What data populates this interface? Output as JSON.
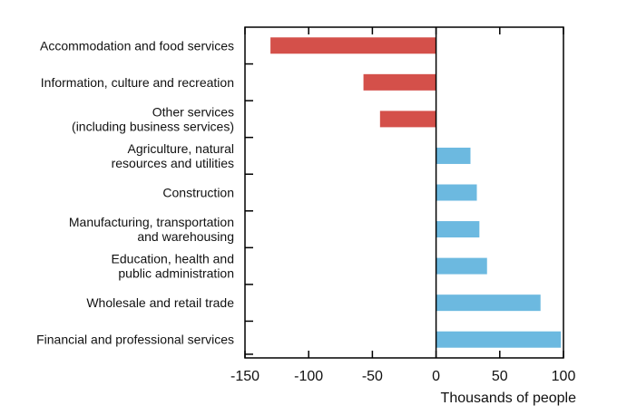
{
  "chart_data": {
    "type": "bar",
    "orientation": "horizontal",
    "xlabel": "Thousands of people",
    "xlim": [
      -150,
      100
    ],
    "xticks": [
      -150,
      -100,
      -50,
      0,
      50,
      100
    ],
    "grid": false,
    "legend": "none",
    "categories": [
      [
        "Accommodation and food services"
      ],
      [
        "Information, culture and recreation"
      ],
      [
        "Other services",
        "(including business services)"
      ],
      [
        "Agriculture, natural",
        "resources and utilities"
      ],
      [
        "Construction"
      ],
      [
        "Manufacturing, transportation",
        "and warehousing"
      ],
      [
        "Education, health and",
        "public administration"
      ],
      [
        "Wholesale and retail trade"
      ],
      [
        "Financial and professional services"
      ]
    ],
    "values": [
      -130,
      -57,
      -44,
      27,
      32,
      34,
      40,
      82,
      98
    ],
    "colors": {
      "negative": "#d4504a",
      "positive": "#6cb9e0"
    }
  }
}
